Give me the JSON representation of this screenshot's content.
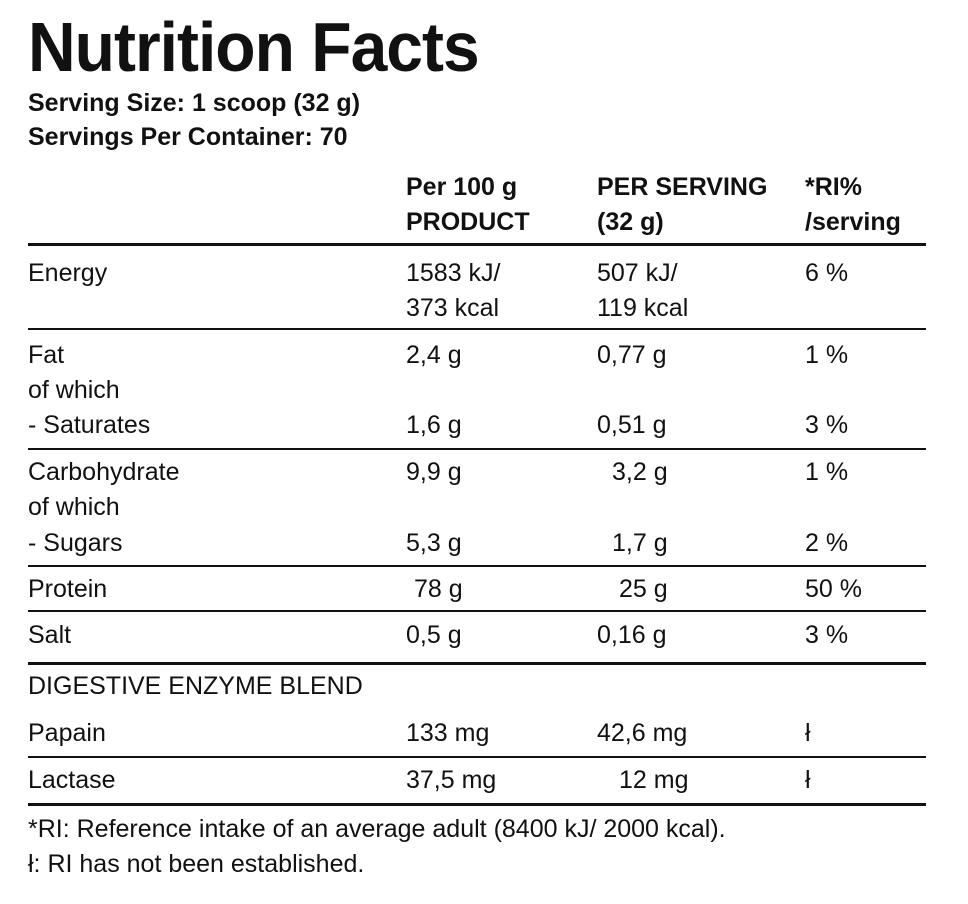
{
  "title": "Nutrition Facts",
  "serving_size": "Serving Size: 1 scoop (32 g)",
  "servings_per_container": "Servings Per Container: 70",
  "columns": {
    "per100_line1": "Per 100 g",
    "per100_line2": "PRODUCT",
    "serving_line1": "PER SERVING",
    "serving_line2": "(32 g)",
    "ri_line1": "*RI%",
    "ri_line2": "/serving"
  },
  "rows": {
    "energy": {
      "name": "Energy",
      "per100_line1": "1583 kJ/",
      "per100_line2": "373 kcal",
      "serving_line1": "507 kJ/",
      "serving_line2": "119 kcal",
      "ri": "6 %"
    },
    "fat": {
      "name": "Fat",
      "per100": "2,4 g",
      "serving": "0,77 g",
      "ri": "1 %"
    },
    "fat_of_which": "of which",
    "saturates": {
      "name": "- Saturates",
      "per100": "1,6 g",
      "serving": "0,51 g",
      "ri": "3 %"
    },
    "carbohydrate": {
      "name": "Carbohydrate",
      "per100": "9,9 g",
      "serving": "3,2 g",
      "ri": "1 %"
    },
    "carb_of_which": "of which",
    "sugars": {
      "name": "- Sugars",
      "per100": "5,3 g",
      "serving": "1,7 g",
      "ri": "2 %"
    },
    "protein": {
      "name": "Protein",
      "per100": "78 g",
      "serving": "25 g",
      "ri": "50 %"
    },
    "salt": {
      "name": "Salt",
      "per100": "0,5 g",
      "serving": "0,16 g",
      "ri": "3 %"
    }
  },
  "enzyme_blend": {
    "heading": "DIGESTIVE ENZYME BLEND",
    "papain": {
      "name": "Papain",
      "per100": "133 mg",
      "serving": "42,6 mg",
      "ri": "ł"
    },
    "lactase": {
      "name": "Lactase",
      "per100": "37,5 mg",
      "serving": "12 mg",
      "ri": "ł"
    }
  },
  "footnotes": {
    "ri_note": "*RI: Reference intake of an average adult (8400 kJ/ 2000 kcal).",
    "not_established": "ł: RI has not been established."
  }
}
